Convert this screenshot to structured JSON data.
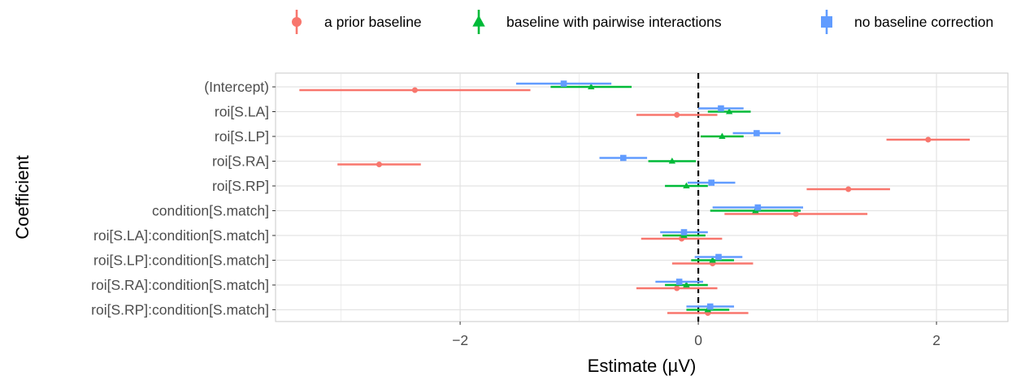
{
  "chart_data": {
    "type": "scatter",
    "subtype": "coefficient-dot-whisker",
    "xlabel": "Estimate (µV)",
    "ylabel": "Coefficient",
    "xlim": [
      -3.55,
      2.6
    ],
    "x_ticks": [
      -2,
      0,
      2
    ],
    "x_tick_labels": [
      "−2",
      "0",
      "2"
    ],
    "reference_line": 0,
    "grid": true,
    "legend_position": "top",
    "categories": [
      "(Intercept)",
      "roi[S.LA]",
      "roi[S.LP]",
      "roi[S.RA]",
      "roi[S.RP]",
      "condition[S.match]",
      "roi[S.LA]:condition[S.match]",
      "roi[S.LP]:condition[S.match]",
      "roi[S.RA]:condition[S.match]",
      "roi[S.RP]:condition[S.match]"
    ],
    "series": [
      {
        "name": "a prior baseline",
        "color": "#F8766D",
        "marker": "circle",
        "estimates": [
          -2.38,
          -0.18,
          1.93,
          -2.68,
          1.26,
          0.82,
          -0.14,
          0.12,
          -0.18,
          0.08
        ],
        "lower": [
          -3.35,
          -0.52,
          1.58,
          -3.03,
          0.91,
          0.22,
          -0.48,
          -0.22,
          -0.52,
          -0.26
        ],
        "upper": [
          -1.41,
          0.16,
          2.28,
          -2.33,
          1.61,
          1.42,
          0.2,
          0.46,
          0.16,
          0.42
        ]
      },
      {
        "name": "baseline with pairwise interactions",
        "color": "#00BA38",
        "marker": "triangle",
        "estimates": [
          -0.9,
          0.26,
          0.2,
          -0.22,
          -0.1,
          0.48,
          -0.12,
          0.12,
          -0.1,
          0.08
        ],
        "lower": [
          -1.24,
          0.08,
          0.02,
          -0.42,
          -0.28,
          0.1,
          -0.3,
          -0.06,
          -0.28,
          -0.1
        ],
        "upper": [
          -0.56,
          0.44,
          0.38,
          -0.02,
          0.08,
          0.86,
          0.06,
          0.3,
          0.08,
          0.26
        ]
      },
      {
        "name": "no baseline correction",
        "color": "#619CFF",
        "marker": "square",
        "estimates": [
          -1.13,
          0.19,
          0.49,
          -0.63,
          0.11,
          0.5,
          -0.12,
          0.17,
          -0.16,
          0.1
        ],
        "lower": [
          -1.53,
          0.0,
          0.29,
          -0.83,
          -0.09,
          0.12,
          -0.32,
          -0.03,
          -0.36,
          -0.1
        ],
        "upper": [
          -0.73,
          0.38,
          0.69,
          -0.43,
          0.31,
          0.88,
          0.08,
          0.37,
          0.04,
          0.3
        ]
      }
    ]
  }
}
